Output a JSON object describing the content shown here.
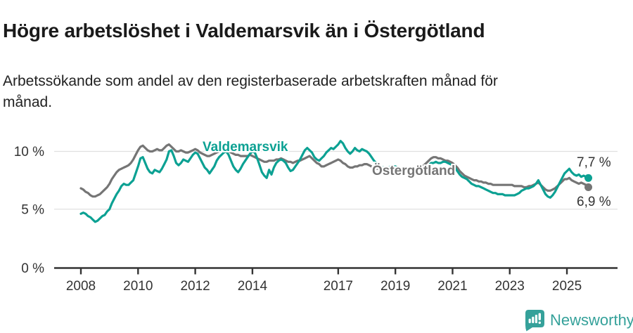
{
  "header": {
    "title": "Högre arbetslöshet i Valdemarsvik än i Östergötland",
    "subtitle": "Arbetssökande som andel av den registerbaserade arbetskraften månad för månad."
  },
  "chart_data": {
    "type": "line",
    "title": "Högre arbetslöshet i Valdemarsvik än i Östergötland",
    "subtitle": "Arbetssökande som andel av den registerbaserade arbetskraften månad för månad.",
    "unit": "%",
    "frequency": "monthly",
    "start": "2008-01",
    "end": "2025-10",
    "xlim": [
      2008,
      2025.83
    ],
    "ylim": [
      0,
      11.6
    ],
    "grid": "horizontal",
    "legend_position": "inline-labels",
    "yticks": [
      {
        "label": "0 %",
        "value": 0
      },
      {
        "label": "5 %",
        "value": 5
      },
      {
        "label": "10 %",
        "value": 10
      }
    ],
    "xticks": [
      {
        "label": "2008",
        "year": 2008
      },
      {
        "label": "2010",
        "year": 2010
      },
      {
        "label": "2012",
        "year": 2012
      },
      {
        "label": "2014",
        "year": 2014
      },
      {
        "label": "2017",
        "year": 2017
      },
      {
        "label": "2019",
        "year": 2019
      },
      {
        "label": "2021",
        "year": 2021
      },
      {
        "label": "2023",
        "year": 2023
      },
      {
        "label": "2025",
        "year": 2025
      }
    ],
    "series": [
      {
        "name": "Valdemarsvik",
        "color": "#0ca193",
        "end_label": "7,7 %",
        "end_value": 7.7,
        "values": [
          4.6,
          4.7,
          4.6,
          4.4,
          4.3,
          4.1,
          3.9,
          4.0,
          4.2,
          4.4,
          4.5,
          4.8,
          5.0,
          5.5,
          5.9,
          6.3,
          6.6,
          7.0,
          7.2,
          7.1,
          7.1,
          7.3,
          7.5,
          8.1,
          8.7,
          9.4,
          9.5,
          9.0,
          8.5,
          8.2,
          8.1,
          8.4,
          8.3,
          8.2,
          8.5,
          8.9,
          9.3,
          10.0,
          10.1,
          9.6,
          9.0,
          8.8,
          9.0,
          9.3,
          9.2,
          9.1,
          9.4,
          9.7,
          9.9,
          9.8,
          9.4,
          9.0,
          8.6,
          8.4,
          8.1,
          8.4,
          8.7,
          9.2,
          9.5,
          9.7,
          9.9,
          10.0,
          9.7,
          9.2,
          8.7,
          8.4,
          8.2,
          8.5,
          8.9,
          9.2,
          9.5,
          9.8,
          10.0,
          9.9,
          9.4,
          8.8,
          8.2,
          7.9,
          7.7,
          8.4,
          8.0,
          8.6,
          9.0,
          9.2,
          9.3,
          9.2,
          9.0,
          8.6,
          8.3,
          8.4,
          8.7,
          9.0,
          9.3,
          9.7,
          10.1,
          10.3,
          10.1,
          9.9,
          9.5,
          9.3,
          9.2,
          9.4,
          9.6,
          9.9,
          10.1,
          10.3,
          10.2,
          10.4,
          10.6,
          10.9,
          10.7,
          10.3,
          10.0,
          9.8,
          10.0,
          10.3,
          10.1,
          10.0,
          10.2,
          10.1,
          10.0,
          9.8,
          9.5,
          9.2,
          9.0,
          8.8,
          8.7,
          8.6,
          8.6,
          8.6,
          8.7,
          8.7,
          8.7,
          8.6,
          8.5,
          8.4,
          8.3,
          8.3,
          8.4,
          8.3,
          8.4,
          8.5,
          8.5,
          8.6,
          8.6,
          8.7,
          8.8,
          9.0,
          9.0,
          9.1,
          9.0,
          9.0,
          9.1,
          9.1,
          9.0,
          8.9,
          8.8,
          8.6,
          8.3,
          8.0,
          7.8,
          7.7,
          7.6,
          7.4,
          7.2,
          7.1,
          7.0,
          7.0,
          6.9,
          6.8,
          6.7,
          6.6,
          6.5,
          6.4,
          6.4,
          6.3,
          6.3,
          6.3,
          6.2,
          6.2,
          6.2,
          6.2,
          6.2,
          6.3,
          6.4,
          6.6,
          6.7,
          6.8,
          6.8,
          6.9,
          7.0,
          7.2,
          7.5,
          7.1,
          6.7,
          6.3,
          6.1,
          6.0,
          6.2,
          6.5,
          6.9,
          7.3,
          7.7,
          8.1,
          8.3,
          8.5,
          8.2,
          8.0,
          7.9,
          8.0,
          7.8,
          7.9,
          7.8,
          7.7
        ]
      },
      {
        "name": "Östergötland",
        "color": "#757575",
        "end_label": "6,9 %",
        "end_value": 6.9,
        "values": [
          6.8,
          6.7,
          6.5,
          6.4,
          6.2,
          6.1,
          6.1,
          6.2,
          6.3,
          6.5,
          6.7,
          6.9,
          7.2,
          7.6,
          7.9,
          8.2,
          8.4,
          8.5,
          8.6,
          8.7,
          8.8,
          9.0,
          9.3,
          9.7,
          10.1,
          10.4,
          10.5,
          10.3,
          10.1,
          10.0,
          10.0,
          10.1,
          10.2,
          10.1,
          10.1,
          10.3,
          10.5,
          10.6,
          10.4,
          10.2,
          10.0,
          10.0,
          10.1,
          10.0,
          9.9,
          9.9,
          10.0,
          10.1,
          10.2,
          10.1,
          9.9,
          9.8,
          9.7,
          9.6,
          9.6,
          9.7,
          9.8,
          9.9,
          10.0,
          10.1,
          10.2,
          10.1,
          10.0,
          9.9,
          9.8,
          9.7,
          9.7,
          9.6,
          9.6,
          9.6,
          9.6,
          9.7,
          9.6,
          9.5,
          9.4,
          9.3,
          9.2,
          9.1,
          9.1,
          9.2,
          9.2,
          9.2,
          9.3,
          9.3,
          9.4,
          9.3,
          9.2,
          9.1,
          9.1,
          9.0,
          9.1,
          9.2,
          9.2,
          9.3,
          9.4,
          9.5,
          9.6,
          9.4,
          9.2,
          9.0,
          8.9,
          8.7,
          8.7,
          8.8,
          8.9,
          9.0,
          9.1,
          9.2,
          9.3,
          9.2,
          9.0,
          8.9,
          8.7,
          8.6,
          8.6,
          8.7,
          8.7,
          8.8,
          8.8,
          8.9,
          8.9,
          8.8,
          8.7,
          8.6,
          8.5,
          8.5,
          8.5,
          8.5,
          8.6,
          8.6,
          8.6,
          8.7,
          8.6,
          8.6,
          8.5,
          8.4,
          8.4,
          8.4,
          8.4,
          8.5,
          8.5,
          8.6,
          8.6,
          8.7,
          8.8,
          9.0,
          9.2,
          9.4,
          9.5,
          9.5,
          9.4,
          9.4,
          9.3,
          9.2,
          9.2,
          9.1,
          9.0,
          8.8,
          8.6,
          8.3,
          8.1,
          7.9,
          7.8,
          7.7,
          7.6,
          7.5,
          7.5,
          7.4,
          7.4,
          7.3,
          7.3,
          7.2,
          7.2,
          7.1,
          7.1,
          7.1,
          7.1,
          7.1,
          7.1,
          7.1,
          7.1,
          7.1,
          7.0,
          7.0,
          7.0,
          7.0,
          6.9,
          6.9,
          7.0,
          7.0,
          7.1,
          7.2,
          7.3,
          7.1,
          6.9,
          6.7,
          6.6,
          6.6,
          6.7,
          6.8,
          7.0,
          7.2,
          7.4,
          7.6,
          7.6,
          7.7,
          7.5,
          7.4,
          7.3,
          7.2,
          7.3,
          7.2,
          7.1,
          6.9
        ]
      }
    ]
  },
  "footer": {
    "brand": "Newsworthy"
  }
}
